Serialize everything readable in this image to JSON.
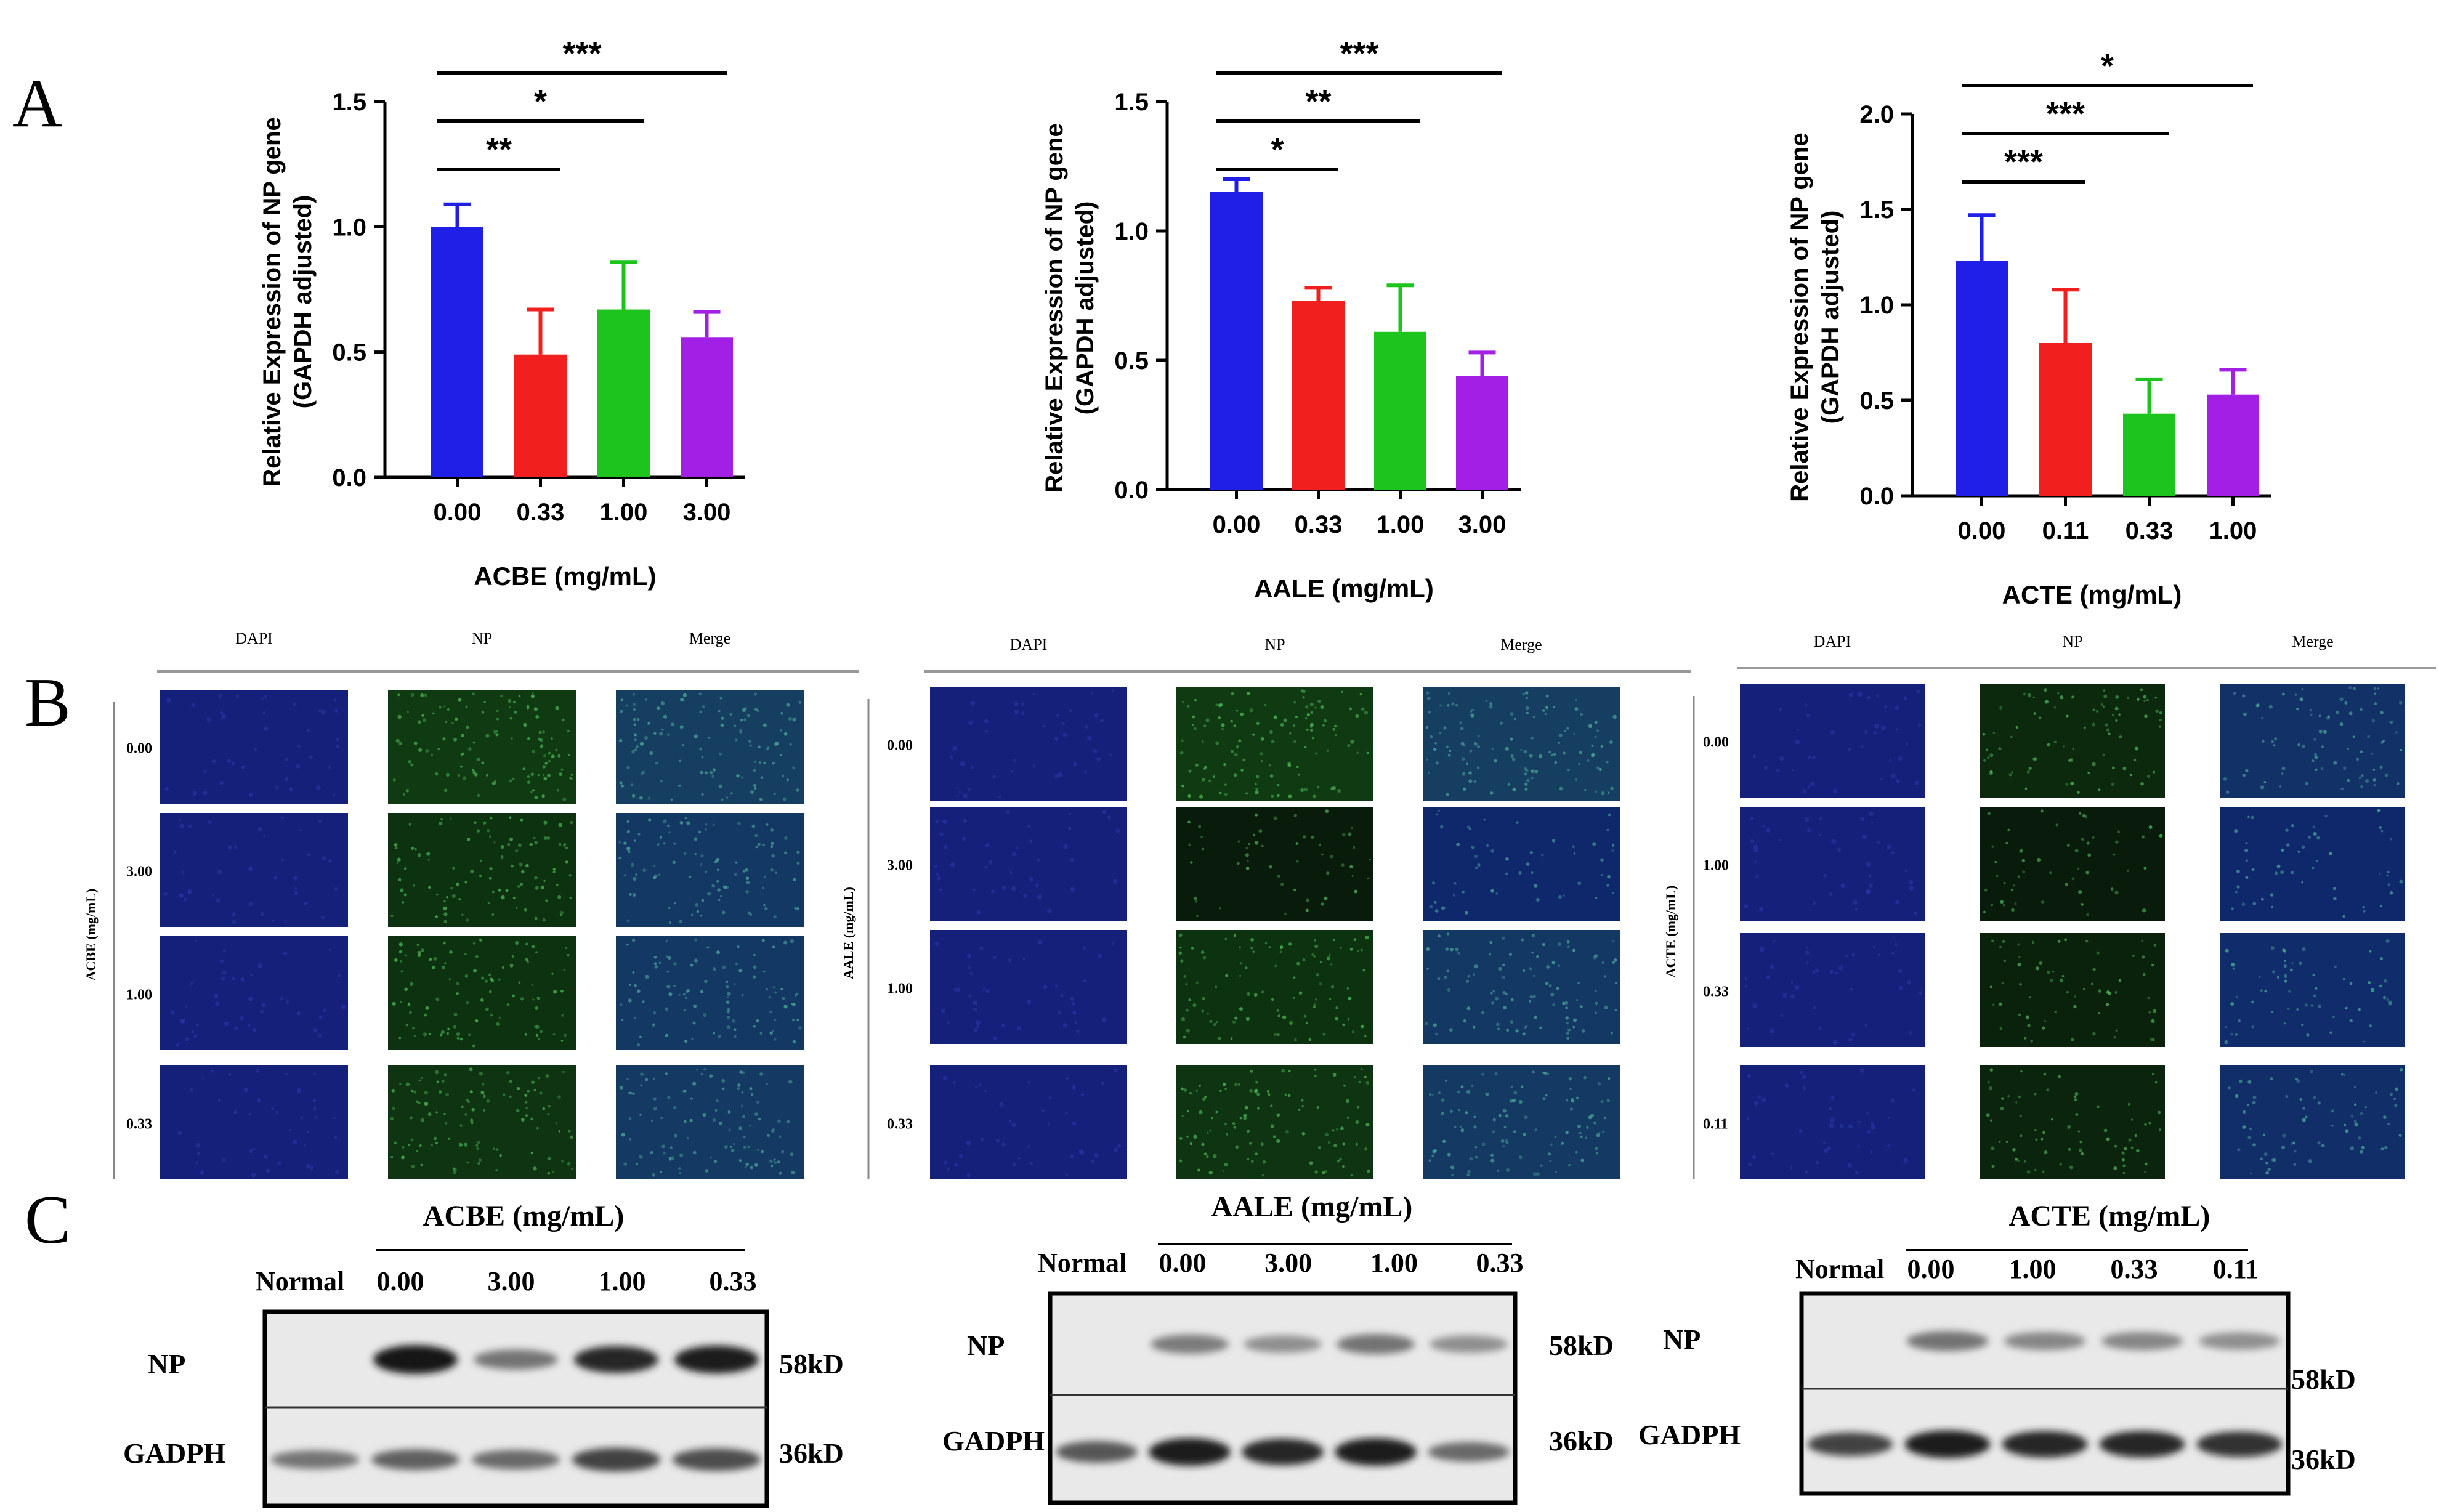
{
  "figure": {
    "panel_labels": [
      "A",
      "B",
      "C"
    ]
  },
  "chart_data": [
    {
      "type": "bar",
      "categories": [
        "0.00",
        "0.33",
        "1.00",
        "3.00"
      ],
      "values": [
        1.0,
        0.49,
        0.67,
        0.56
      ],
      "errors": [
        0.09,
        0.18,
        0.19,
        0.1
      ],
      "colors": [
        "#1f1fe8",
        "#f21f1f",
        "#1ec41e",
        "#a21fe6"
      ],
      "xlabel": "ACBE (mg/mL)",
      "ylabel": "Relative Expression of NP gene",
      "ylabel2": "(GAPDH adjusted)",
      "ylim": [
        0,
        1.5
      ],
      "yticks": [
        "0.0",
        "0.5",
        "1.0",
        "1.5"
      ],
      "tick_values": [
        0,
        0.5,
        1.0,
        1.5
      ],
      "significance": [
        {
          "from": 0,
          "to": 1,
          "label": "**"
        },
        {
          "from": 0,
          "to": 2,
          "label": "*"
        },
        {
          "from": 0,
          "to": 3,
          "label": "***"
        }
      ]
    },
    {
      "type": "bar",
      "categories": [
        "0.00",
        "0.33",
        "1.00",
        "3.00"
      ],
      "values": [
        1.15,
        0.73,
        0.61,
        0.44
      ],
      "errors": [
        0.05,
        0.05,
        0.18,
        0.09
      ],
      "colors": [
        "#1f1fe8",
        "#f21f1f",
        "#1ec41e",
        "#a21fe6"
      ],
      "xlabel": "AALE (mg/mL)",
      "ylabel": "Relative Expression of NP gene",
      "ylabel2": "(GAPDH adjusted)",
      "ylim": [
        0,
        1.5
      ],
      "yticks": [
        "0.0",
        "0.5",
        "1.0",
        "1.5"
      ],
      "tick_values": [
        0,
        0.5,
        1.0,
        1.5
      ],
      "significance": [
        {
          "from": 0,
          "to": 1,
          "label": "*"
        },
        {
          "from": 0,
          "to": 2,
          "label": "**"
        },
        {
          "from": 0,
          "to": 3,
          "label": "***"
        }
      ]
    },
    {
      "type": "bar",
      "categories": [
        "0.00",
        "0.11",
        "0.33",
        "1.00"
      ],
      "values": [
        1.23,
        0.8,
        0.43,
        0.53
      ],
      "errors": [
        0.24,
        0.28,
        0.18,
        0.13
      ],
      "colors": [
        "#1f1fe8",
        "#f21f1f",
        "#1ec41e",
        "#a21fe6"
      ],
      "xlabel": "ACTE (mg/mL)",
      "ylabel": "Relative Expression of NP gene",
      "ylabel2": "(GAPDH adjusted)",
      "ylim": [
        0,
        2.0
      ],
      "yticks": [
        "0.0",
        "0.5",
        "1.0",
        "1.5",
        "2.0"
      ],
      "tick_values": [
        0,
        0.5,
        1.0,
        1.5,
        2.0
      ],
      "significance": [
        {
          "from": 0,
          "to": 1,
          "label": "***"
        },
        {
          "from": 0,
          "to": 2,
          "label": "***"
        },
        {
          "from": 0,
          "to": 3,
          "label": "*"
        }
      ]
    }
  ],
  "immunofluorescence": [
    {
      "columns": [
        "DAPI",
        "NP",
        "Merge"
      ],
      "side_label": "ACBE (mg/mL)",
      "rows": [
        "0.00",
        "3.00",
        "1.00",
        "0.33"
      ],
      "green_intensity": [
        0.65,
        0.5,
        0.5,
        0.55
      ]
    },
    {
      "columns": [
        "DAPI",
        "NP",
        "Merge"
      ],
      "side_label": "AALE (mg/mL)",
      "rows": [
        "0.00",
        "3.00",
        "1.00",
        "0.33"
      ],
      "green_intensity": [
        0.65,
        0.1,
        0.5,
        0.55
      ]
    },
    {
      "columns": [
        "DAPI",
        "NP",
        "Merge"
      ],
      "side_label": "ACTE (mg/mL)",
      "rows": [
        "0.00",
        "1.00",
        "0.33",
        "0.11"
      ],
      "green_intensity": [
        0.35,
        0.1,
        0.2,
        0.25
      ]
    }
  ],
  "western_blots": [
    {
      "header": "ACBE (mg/mL)",
      "lanes": [
        "Normal",
        "0.00",
        "3.00",
        "1.00",
        "0.33"
      ],
      "rows": [
        "NP",
        "GADPH"
      ],
      "sizes": [
        "58kD",
        "36kD"
      ],
      "np_intensity": [
        0,
        0.95,
        0.45,
        0.85,
        0.9
      ],
      "gapdh_intensity": [
        0.45,
        0.55,
        0.5,
        0.7,
        0.65
      ]
    },
    {
      "header": "AALE (mg/mL)",
      "lanes": [
        "Normal",
        "0.00",
        "3.00",
        "1.00",
        "0.33"
      ],
      "rows": [
        "NP",
        "GADPH"
      ],
      "sizes": [
        "58kD",
        "36kD"
      ],
      "np_intensity": [
        0,
        0.4,
        0.3,
        0.45,
        0.3
      ],
      "gapdh_intensity": [
        0.6,
        0.9,
        0.85,
        0.9,
        0.5
      ]
    },
    {
      "header": "ACTE (mg/mL)",
      "lanes": [
        "Normal",
        "0.00",
        "1.00",
        "0.33",
        "0.11"
      ],
      "rows": [
        "NP",
        "GADPH"
      ],
      "sizes": [
        "58kD",
        "36kD"
      ],
      "np_intensity": [
        0,
        0.45,
        0.35,
        0.35,
        0.3
      ],
      "gapdh_intensity": [
        0.7,
        0.9,
        0.85,
        0.85,
        0.8
      ]
    }
  ]
}
